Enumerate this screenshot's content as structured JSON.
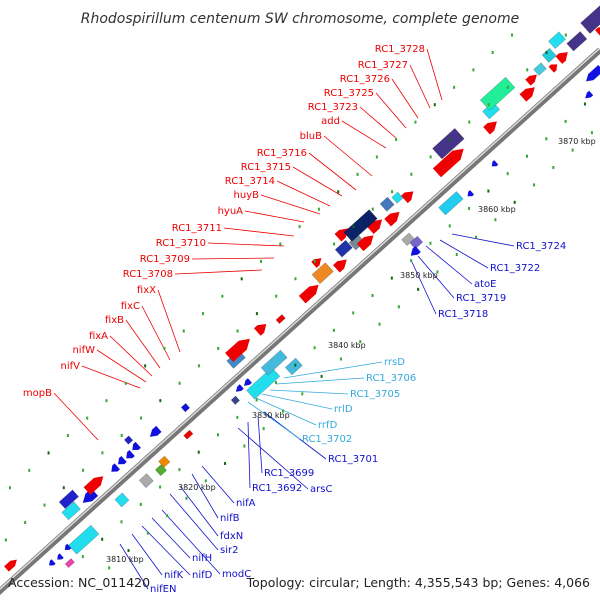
{
  "title": "Rhodospirillum centenum SW chromosome, complete genome",
  "footer": {
    "accession": "Accession: NC_011420",
    "summary": "Topology: circular; Length: 4,355,543 bp; Genes: 4,066"
  },
  "colors": {
    "forward_label": "#ee0000",
    "reverse_label": "#1010cc",
    "rna_label": "#33aadd",
    "backbone": "#999999"
  },
  "kbp_ticks": [
    "3810 kbp",
    "3820 kbp",
    "3830 kbp",
    "3840 kbp",
    "3850 kbp",
    "3860 kbp",
    "3870 kbp"
  ],
  "forward_labels": [
    "RC1_3728",
    "RC1_3727",
    "RC1_3726",
    "RC1_3725",
    "RC1_3723",
    "add",
    "bluB",
    "RC1_3716",
    "RC1_3715",
    "RC1_3714",
    "huyB",
    "hyuA",
    "RC1_3711",
    "RC1_3710",
    "RC1_3709",
    "RC1_3708",
    "fixX",
    "fixC",
    "fixB",
    "fixA",
    "nifW",
    "nifV",
    "mopB"
  ],
  "reverse_labels": [
    "RC1_3724",
    "RC1_3722",
    "atoE",
    "RC1_3719",
    "RC1_3718",
    "RC1_3701",
    "RC1_3699",
    "RC1_3692",
    "arsC",
    "nifA",
    "nifB",
    "fdxN",
    "sir2",
    "modC",
    "nifH",
    "nifD",
    "nifK",
    "nifEN"
  ],
  "rna_labels": [
    "rrsD",
    "RC1_3706",
    "RC1_3705",
    "rrlD",
    "rrfD",
    "RC1_3702"
  ]
}
